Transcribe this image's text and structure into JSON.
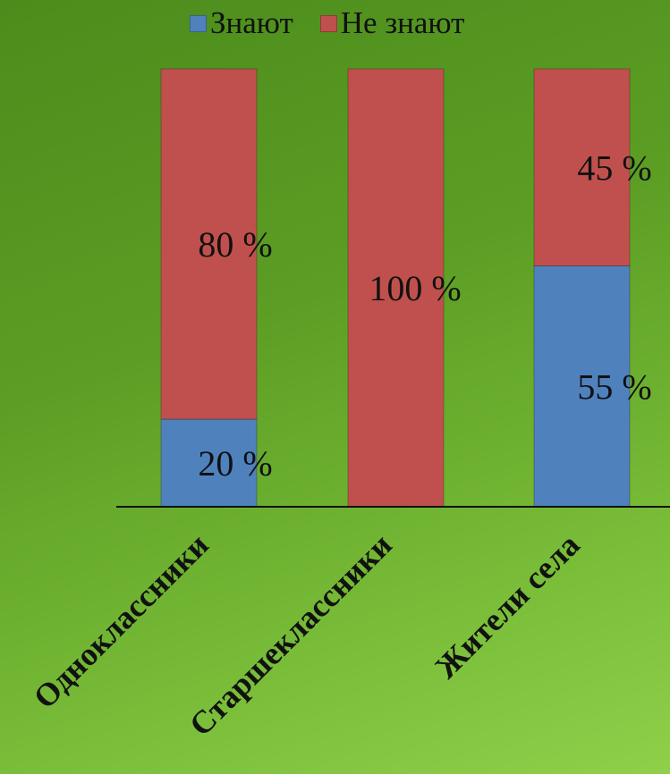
{
  "chart_data": {
    "type": "bar",
    "stacked": true,
    "categories": [
      "Одноклассники",
      "Старшеклассники",
      "Жители села"
    ],
    "series": [
      {
        "name": "Знают",
        "values": [
          20,
          0,
          55
        ],
        "color": "#4f81bd"
      },
      {
        "name": "Не знают",
        "values": [
          80,
          100,
          45
        ],
        "color": "#c0504d"
      }
    ],
    "labels": [
      [
        "20 %",
        "",
        "55 %"
      ],
      [
        "80 %",
        "100 %",
        "45 %"
      ]
    ],
    "ylim": [
      0,
      100
    ],
    "legend": "top",
    "grid": false
  }
}
